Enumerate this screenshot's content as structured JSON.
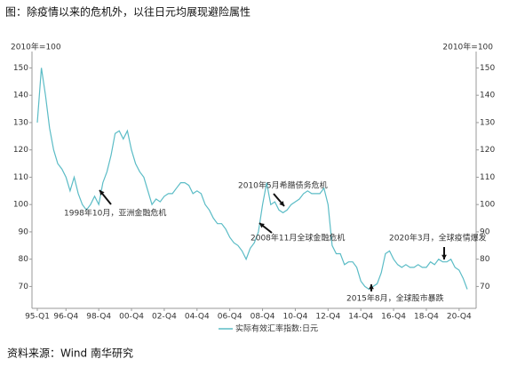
{
  "chart_data": {
    "type": "line",
    "title": "图：除疫情以来的危机外，以往日元均展现避险属性",
    "source": "资料来源：Wind 南华研究",
    "y_axis_label": "2010年=100",
    "y2_axis_label": "2010年=100",
    "categories": [
      "95-Q1",
      null,
      null,
      null,
      null,
      null,
      null,
      "96-Q4",
      null,
      null,
      null,
      null,
      null,
      null,
      null,
      "98-Q4",
      null,
      null,
      null,
      null,
      null,
      null,
      null,
      "00-Q4",
      null,
      null,
      null,
      null,
      null,
      null,
      null,
      "02-Q4",
      null,
      null,
      null,
      null,
      null,
      null,
      null,
      "04-Q4",
      null,
      null,
      null,
      null,
      null,
      null,
      null,
      "06-Q4",
      null,
      null,
      null,
      null,
      null,
      null,
      null,
      "08-Q4",
      null,
      null,
      null,
      null,
      null,
      null,
      null,
      "10-Q4",
      null,
      null,
      null,
      null,
      null,
      null,
      null,
      "12-Q4",
      null,
      null,
      null,
      null,
      null,
      null,
      null,
      "14-Q4",
      null,
      null,
      null,
      null,
      null,
      null,
      null,
      "16-Q4",
      null,
      null,
      null,
      null,
      null,
      null,
      null,
      "18-Q4",
      null,
      null,
      null,
      null,
      null,
      null,
      null,
      "20-Q4",
      null,
      null
    ],
    "series": [
      {
        "name": "实际有效汇率指数:日元",
        "color": "#5bbcc6",
        "values": [
          130,
          150,
          140,
          128,
          120,
          115,
          113,
          110,
          105,
          110,
          104,
          100,
          98,
          100,
          103,
          100,
          108,
          112,
          118,
          126,
          127,
          124,
          127,
          120,
          115,
          112,
          110,
          105,
          100,
          102,
          101,
          103,
          104,
          104,
          106,
          108,
          108,
          107,
          104,
          105,
          104,
          100,
          98,
          95,
          93,
          93,
          91,
          88,
          86,
          85,
          83,
          80,
          84,
          86,
          90,
          100,
          108,
          100,
          101,
          98,
          97,
          98,
          100,
          101,
          102,
          104,
          105,
          104,
          104,
          104,
          106,
          100,
          85,
          82,
          82,
          78,
          79,
          79,
          77,
          72,
          70,
          69,
          70,
          71,
          75,
          82,
          83,
          80,
          78,
          77,
          78,
          77,
          77,
          78,
          77,
          77,
          79,
          78,
          80,
          79,
          79,
          80,
          77,
          76,
          73,
          69
        ]
      }
    ],
    "ylim": [
      62,
      156
    ],
    "yticks": [
      70,
      80,
      90,
      100,
      110,
      120,
      130,
      140,
      150
    ],
    "y2lim": [
      62,
      156
    ],
    "y2ticks": [
      70,
      80,
      90,
      100,
      110,
      120,
      130,
      140,
      150
    ],
    "annotations": [
      {
        "text": "1998年10月，亚洲金融危机",
        "index": 15
      },
      {
        "text": "2010年5月希腊债务危机",
        "index": 61
      },
      {
        "text": "2008年11月全球金融危机",
        "index": 55
      },
      {
        "text": "2015年8月，全球股市暴跌",
        "index": 82
      },
      {
        "text": "2020年3月，全球疫情爆发",
        "index": 100
      }
    ]
  }
}
